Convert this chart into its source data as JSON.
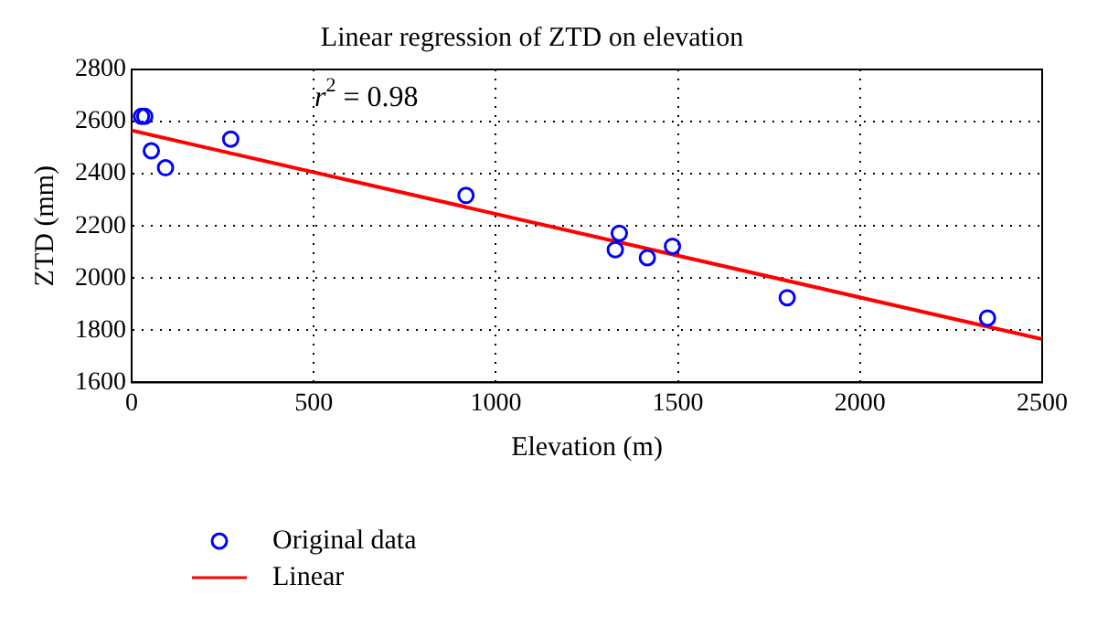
{
  "chart_data": {
    "type": "scatter",
    "title": "Linear regression of ZTD on elevation",
    "xlabel": "Elevation (m)",
    "ylabel": "ZTD (mm)",
    "series": [
      {
        "name": "Original data",
        "color": "#0000ff",
        "marker": "circle",
        "x": [
          27,
          36,
          54,
          93,
          272,
          918,
          1328,
          1339,
          1416,
          1485,
          1800,
          2350
        ],
        "values": [
          2620,
          2620,
          2488,
          2423,
          2533,
          2317,
          2109,
          2172,
          2078,
          2122,
          1925,
          1847
        ]
      },
      {
        "name": "Linear",
        "type": "line",
        "color": "#ff0000",
        "marker": "none",
        "line_style": "solid",
        "x": [
          0,
          2500
        ],
        "values": [
          2566,
          1766
        ]
      }
    ],
    "xlim": [
      0,
      2500
    ],
    "xticks": [
      0,
      500,
      1000,
      1500,
      2000,
      2500
    ],
    "ylim": [
      1600,
      2800
    ],
    "yticks": [
      1600,
      1800,
      2000,
      2200,
      2400,
      2600,
      2800
    ],
    "grid": true,
    "legend": "bottom left",
    "annotations": [
      "r$^{2}$ = 0.98"
    ]
  }
}
